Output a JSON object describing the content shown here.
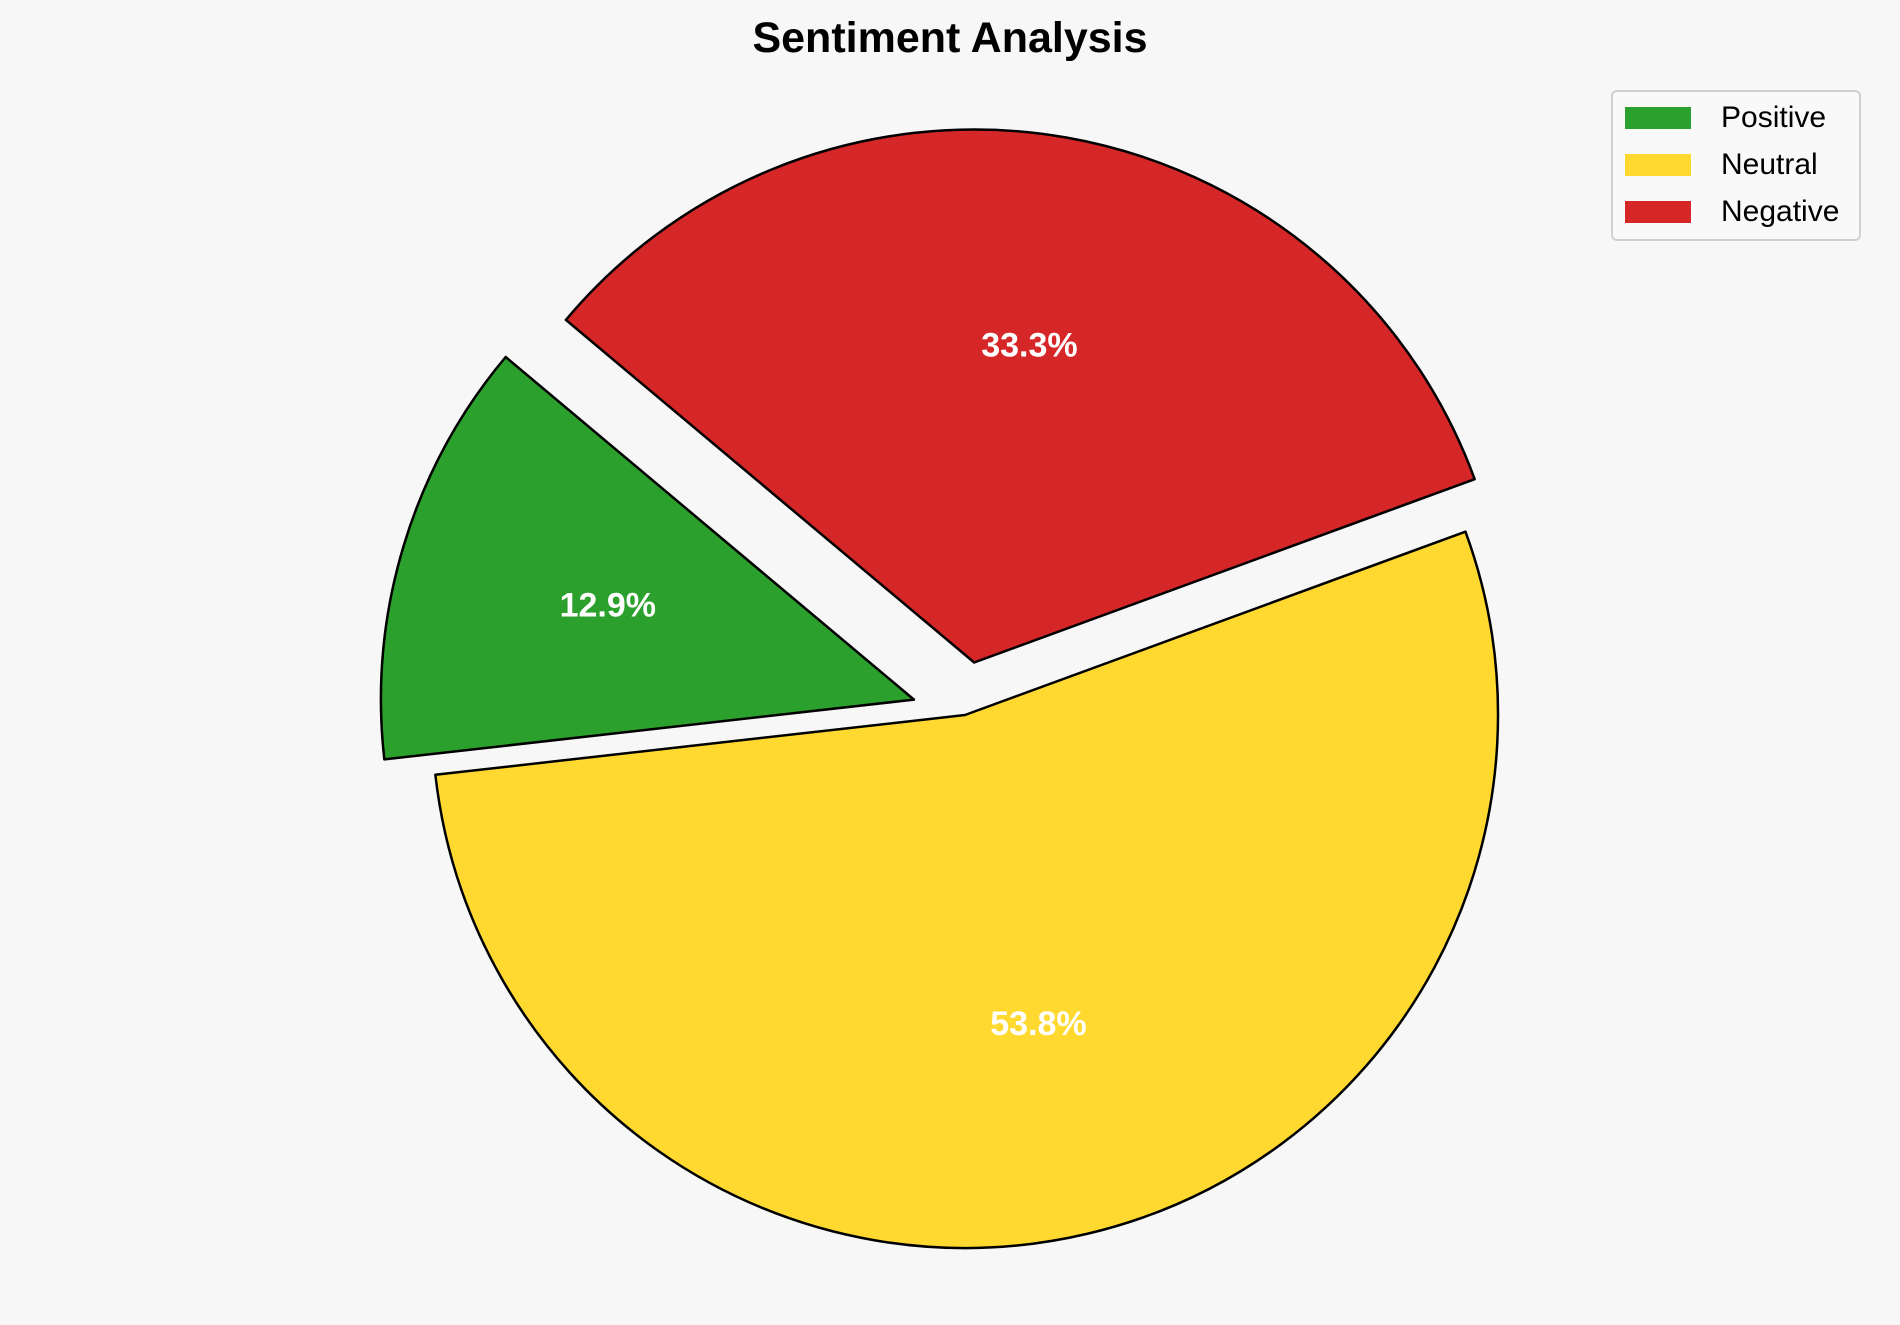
{
  "chart_data": {
    "type": "pie",
    "title": "Sentiment Analysis",
    "categories": [
      "Positive",
      "Neutral",
      "Negative"
    ],
    "values": [
      12.9,
      53.8,
      33.3
    ],
    "labels": [
      "12.9%",
      "53.8%",
      "33.3%"
    ],
    "colors": [
      "#2ca02c",
      "#ffd92f",
      "#d62728"
    ],
    "explode": [
      0.1,
      0,
      0.1
    ],
    "start_angle": 140,
    "direction": "counterclockwise",
    "legend_placement": "top-right"
  }
}
